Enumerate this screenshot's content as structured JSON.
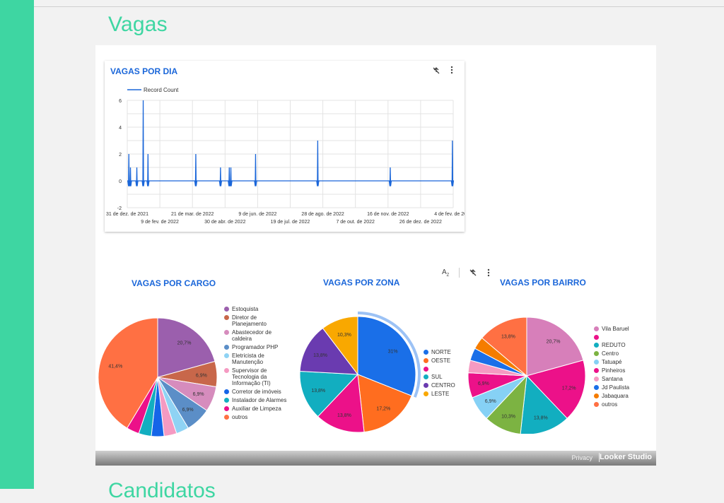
{
  "page": {
    "title": "Vagas",
    "next_section_title": "Candidatos"
  },
  "colors": {
    "accent": "#3ed6a2",
    "chart_title": "#1a66d9",
    "line": "#1a66d9"
  },
  "toolbar_icons": {
    "filter": "filter-off-icon",
    "more": "more-vert-icon",
    "sort": "sort-az-icon"
  },
  "line_chart": {
    "title": "VAGAS POR DIA",
    "legend": "Record Count",
    "yticks": [
      "6",
      "4",
      "2",
      "0",
      "-2"
    ],
    "xticks_row1": [
      "31 de dez. de 2021",
      "21 de mar. de 2022",
      "9 de jun. de 2022",
      "28 de ago. de 2022",
      "16 de nov. de 2022",
      "4 de fev. de 2023"
    ],
    "xticks_row2": [
      "9 de fev. de 2022",
      "30 de abr. de 2022",
      "19 de jul. de 2022",
      "7 de out. de 2022",
      "26 de dez. de 2022"
    ]
  },
  "footer": {
    "privacy": "Privacy",
    "brand": "Looker Studio"
  },
  "chart_data": [
    {
      "type": "line",
      "title": "VAGAS POR DIA",
      "series": [
        {
          "name": "Record Count",
          "peaks": [
            {
              "date": "2022-01-02",
              "value": 2
            },
            {
              "date": "2022-01-04",
              "value": 1
            },
            {
              "date": "2022-01-12",
              "value": 1
            },
            {
              "date": "2022-01-20",
              "value": 6
            },
            {
              "date": "2022-01-26",
              "value": 2
            },
            {
              "date": "2022-03-27",
              "value": 2
            },
            {
              "date": "2022-04-27",
              "value": 1
            },
            {
              "date": "2022-05-08",
              "value": 1
            },
            {
              "date": "2022-05-10",
              "value": 1
            },
            {
              "date": "2022-06-10",
              "value": 2
            },
            {
              "date": "2022-08-27",
              "value": 3
            },
            {
              "date": "2022-11-26",
              "value": 1
            },
            {
              "date": "2023-02-12",
              "value": 3
            }
          ]
        }
      ],
      "baseline": 0,
      "ylim": [
        -2,
        6
      ],
      "xlim": [
        "2021-12-31",
        "2023-02-13"
      ],
      "grid": true,
      "legend_position": "top-left"
    },
    {
      "type": "pie",
      "title": "VAGAS POR CARGO",
      "slices": [
        {
          "label": "Estoquista",
          "value": 20.7,
          "color": "#9b5fad",
          "shown": "20,7%"
        },
        {
          "label": "Diretor de Planejamento",
          "value": 6.9,
          "color": "#c8674a",
          "shown": "6,9%"
        },
        {
          "label": "Abastecedor de caldeira",
          "value": 6.9,
          "color": "#d68cbd",
          "shown": "6,9%"
        },
        {
          "label": "Programador PHP",
          "value": 6.9,
          "color": "#5b8ec7",
          "shown": "6,9%"
        },
        {
          "label": "Eletricista de Manutenção",
          "value": 3.45,
          "color": "#8fd3f4",
          "shown": ""
        },
        {
          "label": "Supervisor de Tecnologia da Informação (TI)",
          "value": 3.45,
          "color": "#f59ac2",
          "shown": ""
        },
        {
          "label": "Corretor de imóveis",
          "value": 3.45,
          "color": "#1565e8",
          "shown": ""
        },
        {
          "label": "Instalador de Alarmes",
          "value": 3.45,
          "color": "#12aec0",
          "shown": ""
        },
        {
          "label": "Auxiliar de Limpeza",
          "value": 3.45,
          "color": "#ec1189",
          "shown": ""
        },
        {
          "label": "outros",
          "value": 41.4,
          "color": "#ff7043",
          "shown": "41,4%"
        }
      ],
      "legend_position": "right"
    },
    {
      "type": "pie",
      "title": "VAGAS POR ZONA",
      "slices": [
        {
          "label": "NORTE",
          "value": 31,
          "color": "#1a6fe8",
          "shown": "31%"
        },
        {
          "label": "OESTE",
          "value": 17.2,
          "color": "#ff6d1f",
          "shown": "17,2%"
        },
        {
          "label": "",
          "value": 13.8,
          "color": "#ec1189",
          "shown": "13,8%"
        },
        {
          "label": "SUL",
          "value": 13.8,
          "color": "#12aec0",
          "shown": "13,8%"
        },
        {
          "label": "CENTRO",
          "value": 13.8,
          "color": "#6a3bb0",
          "shown": "13,8%"
        },
        {
          "label": "LESTE",
          "value": 10.3,
          "color": "#f9a800",
          "shown": "10,3%"
        }
      ],
      "legend_position": "right"
    },
    {
      "type": "pie",
      "title": "VAGAS POR BAIRRO",
      "slices": [
        {
          "label": "Vila Baruel",
          "value": 20.7,
          "color": "#d77fba",
          "shown": "20,7%"
        },
        {
          "label": "",
          "value": 17.2,
          "color": "#ec1189",
          "shown": "17,2%"
        },
        {
          "label": "REDUTO",
          "value": 13.8,
          "color": "#12aec0",
          "shown": "13,8%"
        },
        {
          "label": "Centro",
          "value": 10.3,
          "color": "#7cb342",
          "shown": "10,3%"
        },
        {
          "label": "Tatuapé",
          "value": 6.9,
          "color": "#86d1f5",
          "shown": "6,9%"
        },
        {
          "label": "Pinheiros",
          "value": 6.9,
          "color": "#ec1189",
          "shown": "6,9%"
        },
        {
          "label": "Santana",
          "value": 3.45,
          "color": "#f59ac2",
          "shown": ""
        },
        {
          "label": "Jd Paulista",
          "value": 3.45,
          "color": "#1a6fe8",
          "shown": ""
        },
        {
          "label": "Jabaquara",
          "value": 3.45,
          "color": "#f57c00",
          "shown": ""
        },
        {
          "label": "outros",
          "value": 13.8,
          "color": "#ff7043",
          "shown": "13,8%"
        }
      ],
      "legend_position": "right"
    }
  ]
}
